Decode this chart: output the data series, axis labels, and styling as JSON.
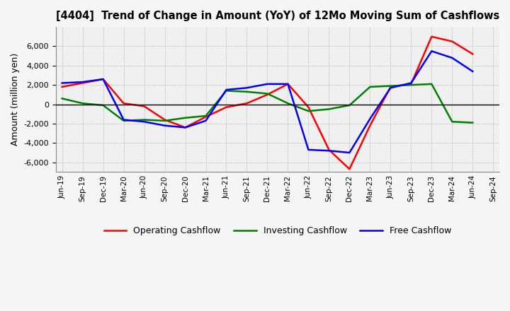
{
  "title": "[4404]  Trend of Change in Amount (YoY) of 12Mo Moving Sum of Cashflows",
  "ylabel": "Amount (million yen)",
  "x_labels": [
    "Jun-19",
    "Sep-19",
    "Dec-19",
    "Mar-20",
    "Jun-20",
    "Sep-20",
    "Dec-20",
    "Mar-21",
    "Jun-21",
    "Sep-21",
    "Dec-21",
    "Mar-22",
    "Jun-22",
    "Sep-22",
    "Dec-22",
    "Mar-23",
    "Jun-23",
    "Sep-23",
    "Dec-23",
    "Mar-24",
    "Jun-24",
    "Sep-24"
  ],
  "operating": [
    1800,
    2200,
    2600,
    100,
    -200,
    -1600,
    -2400,
    -1300,
    -300,
    100,
    1000,
    2100,
    -300,
    -4700,
    -6700,
    -2200,
    1800,
    2100,
    7000,
    6500,
    5200,
    null
  ],
  "investing": [
    600,
    100,
    -100,
    -1700,
    -1600,
    -1700,
    -1400,
    -1200,
    1400,
    1300,
    1100,
    100,
    -700,
    -500,
    -100,
    1800,
    1900,
    2000,
    2100,
    -1800,
    -1900,
    null
  ],
  "free": [
    2200,
    2300,
    2600,
    -1600,
    -1800,
    -2200,
    -2400,
    -1700,
    1500,
    1700,
    2100,
    2100,
    -4700,
    -4800,
    -5000,
    -1500,
    1700,
    2200,
    5500,
    4800,
    3400,
    null
  ],
  "operating_color": "#ff0000",
  "investing_color": "#008000",
  "free_color": "#0000ff",
  "background_color": "#f5f5f5",
  "plot_bg_color": "#f0f0f0",
  "grid_color": "#999999",
  "ylim": [
    -7000,
    8000
  ],
  "yticks": [
    -6000,
    -4000,
    -2000,
    0,
    2000,
    4000,
    6000
  ],
  "legend_labels": [
    "Operating Cashflow",
    "Investing Cashflow",
    "Free Cashflow"
  ],
  "linewidth": 1.8
}
